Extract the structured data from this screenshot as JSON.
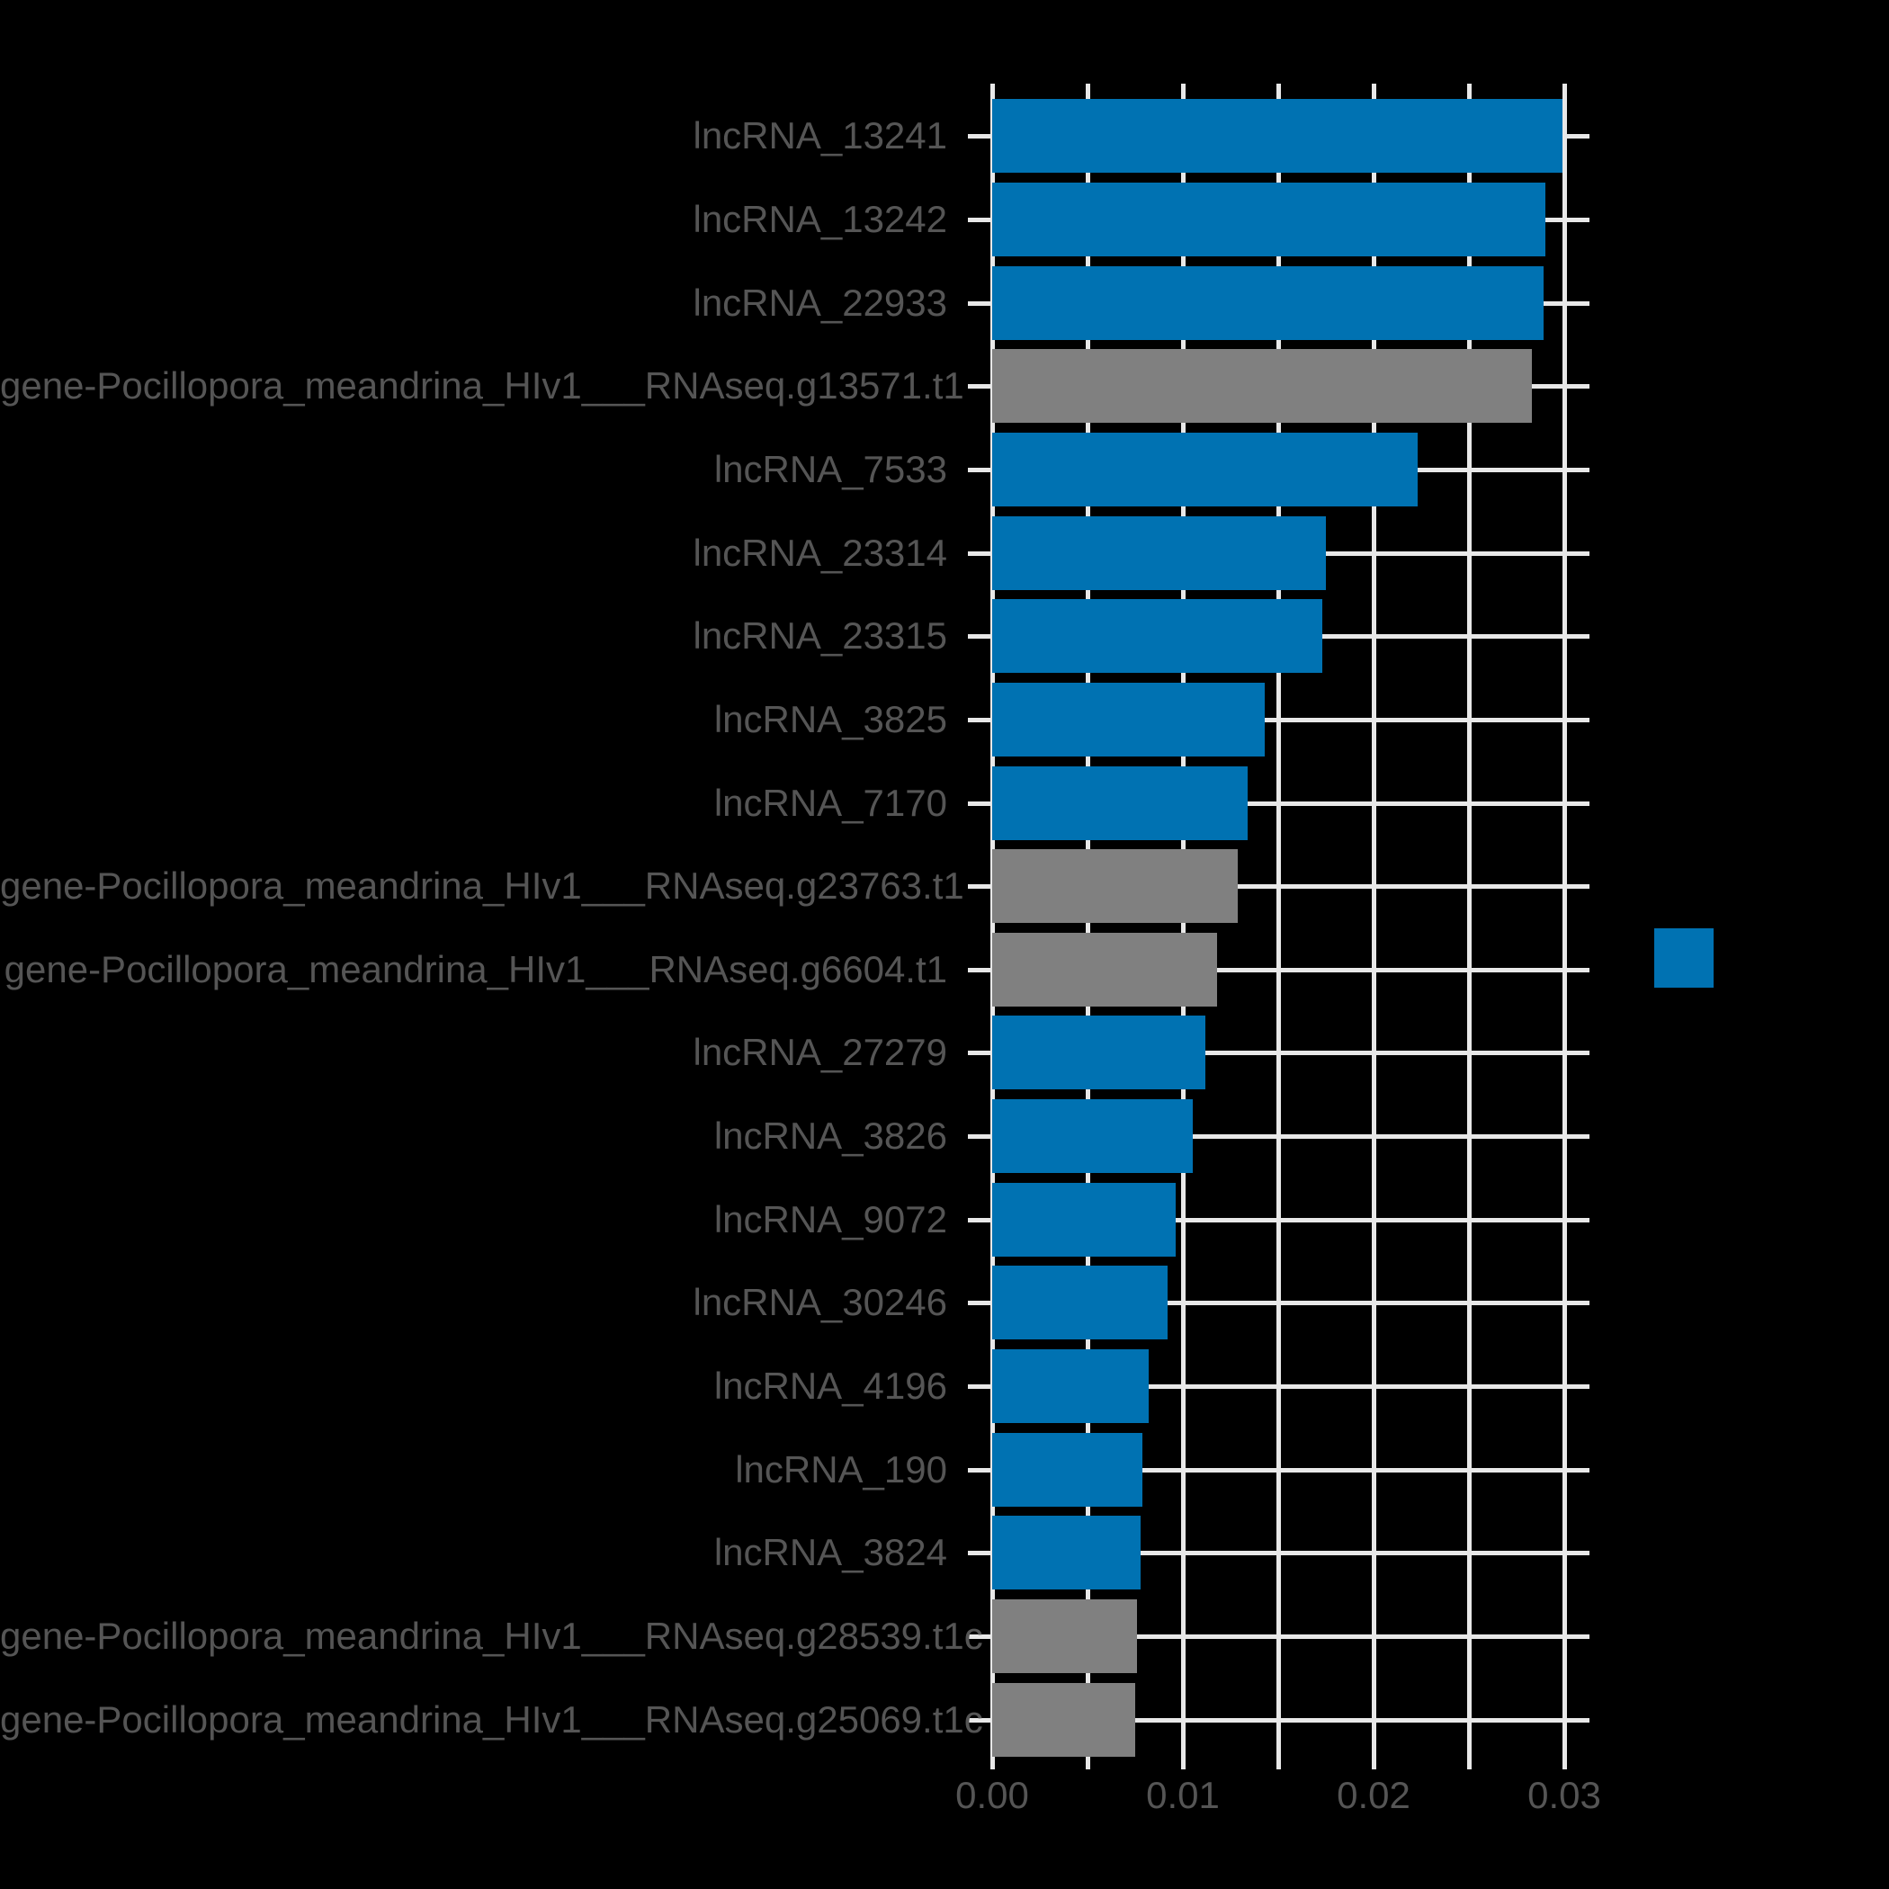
{
  "chart_data": {
    "type": "bar",
    "orientation": "horizontal",
    "title": "",
    "xlabel": "",
    "ylabel": "",
    "categories": [
      "lncRNA_13241",
      "lncRNA_13242",
      "lncRNA_22933",
      "gene-Pocillopora_meandrina_HIv1___RNAseq.g13571.t1",
      "lncRNA_7533",
      "lncRNA_23314",
      "lncRNA_23315",
      "lncRNA_3825",
      "lncRNA_7170",
      "gene-Pocillopora_meandrina_HIv1___RNAseq.g23763.t1",
      "gene-Pocillopora_meandrina_HIv1___RNAseq.g6604.t1",
      "lncRNA_27279",
      "lncRNA_3826",
      "lncRNA_9072",
      "lncRNA_30246",
      "lncRNA_4196",
      "lncRNA_190",
      "lncRNA_3824",
      "gene-Pocillopora_meandrina_HIv1___RNAseq.g28539.t1c",
      "gene-Pocillopora_meandrina_HIv1___RNAseq.g25069.t1c"
    ],
    "values": [
      0.0299,
      0.029,
      0.0289,
      0.0283,
      0.0223,
      0.0175,
      0.0173,
      0.0143,
      0.0134,
      0.0129,
      0.0118,
      0.0112,
      0.0105,
      0.0096,
      0.0092,
      0.0082,
      0.0079,
      0.0078,
      0.0076,
      0.0075
    ],
    "bar_colors": [
      "#0072B2",
      "#0072B2",
      "#0072B2",
      "#808080",
      "#0072B2",
      "#0072B2",
      "#0072B2",
      "#0072B2",
      "#0072B2",
      "#808080",
      "#808080",
      "#0072B2",
      "#0072B2",
      "#0072B2",
      "#0072B2",
      "#0072B2",
      "#0072B2",
      "#0072B2",
      "#808080",
      "#808080"
    ],
    "x_ticks": [
      "0.00",
      "0.01",
      "0.02",
      "0.03"
    ],
    "x_tick_values": [
      0,
      0.01,
      0.02,
      0.03
    ],
    "x_gridline_values": [
      0,
      0.005,
      0.01,
      0.015,
      0.02,
      0.025,
      0.03
    ],
    "xlim": [
      0,
      0.03132
    ],
    "grid": true,
    "legend": {
      "swatch_color": "#0072B2"
    },
    "colors": {
      "background": "#000000",
      "grid": "#E8E8E8",
      "text": "#555555",
      "blue": "#0072B2",
      "gray": "#808080"
    }
  }
}
